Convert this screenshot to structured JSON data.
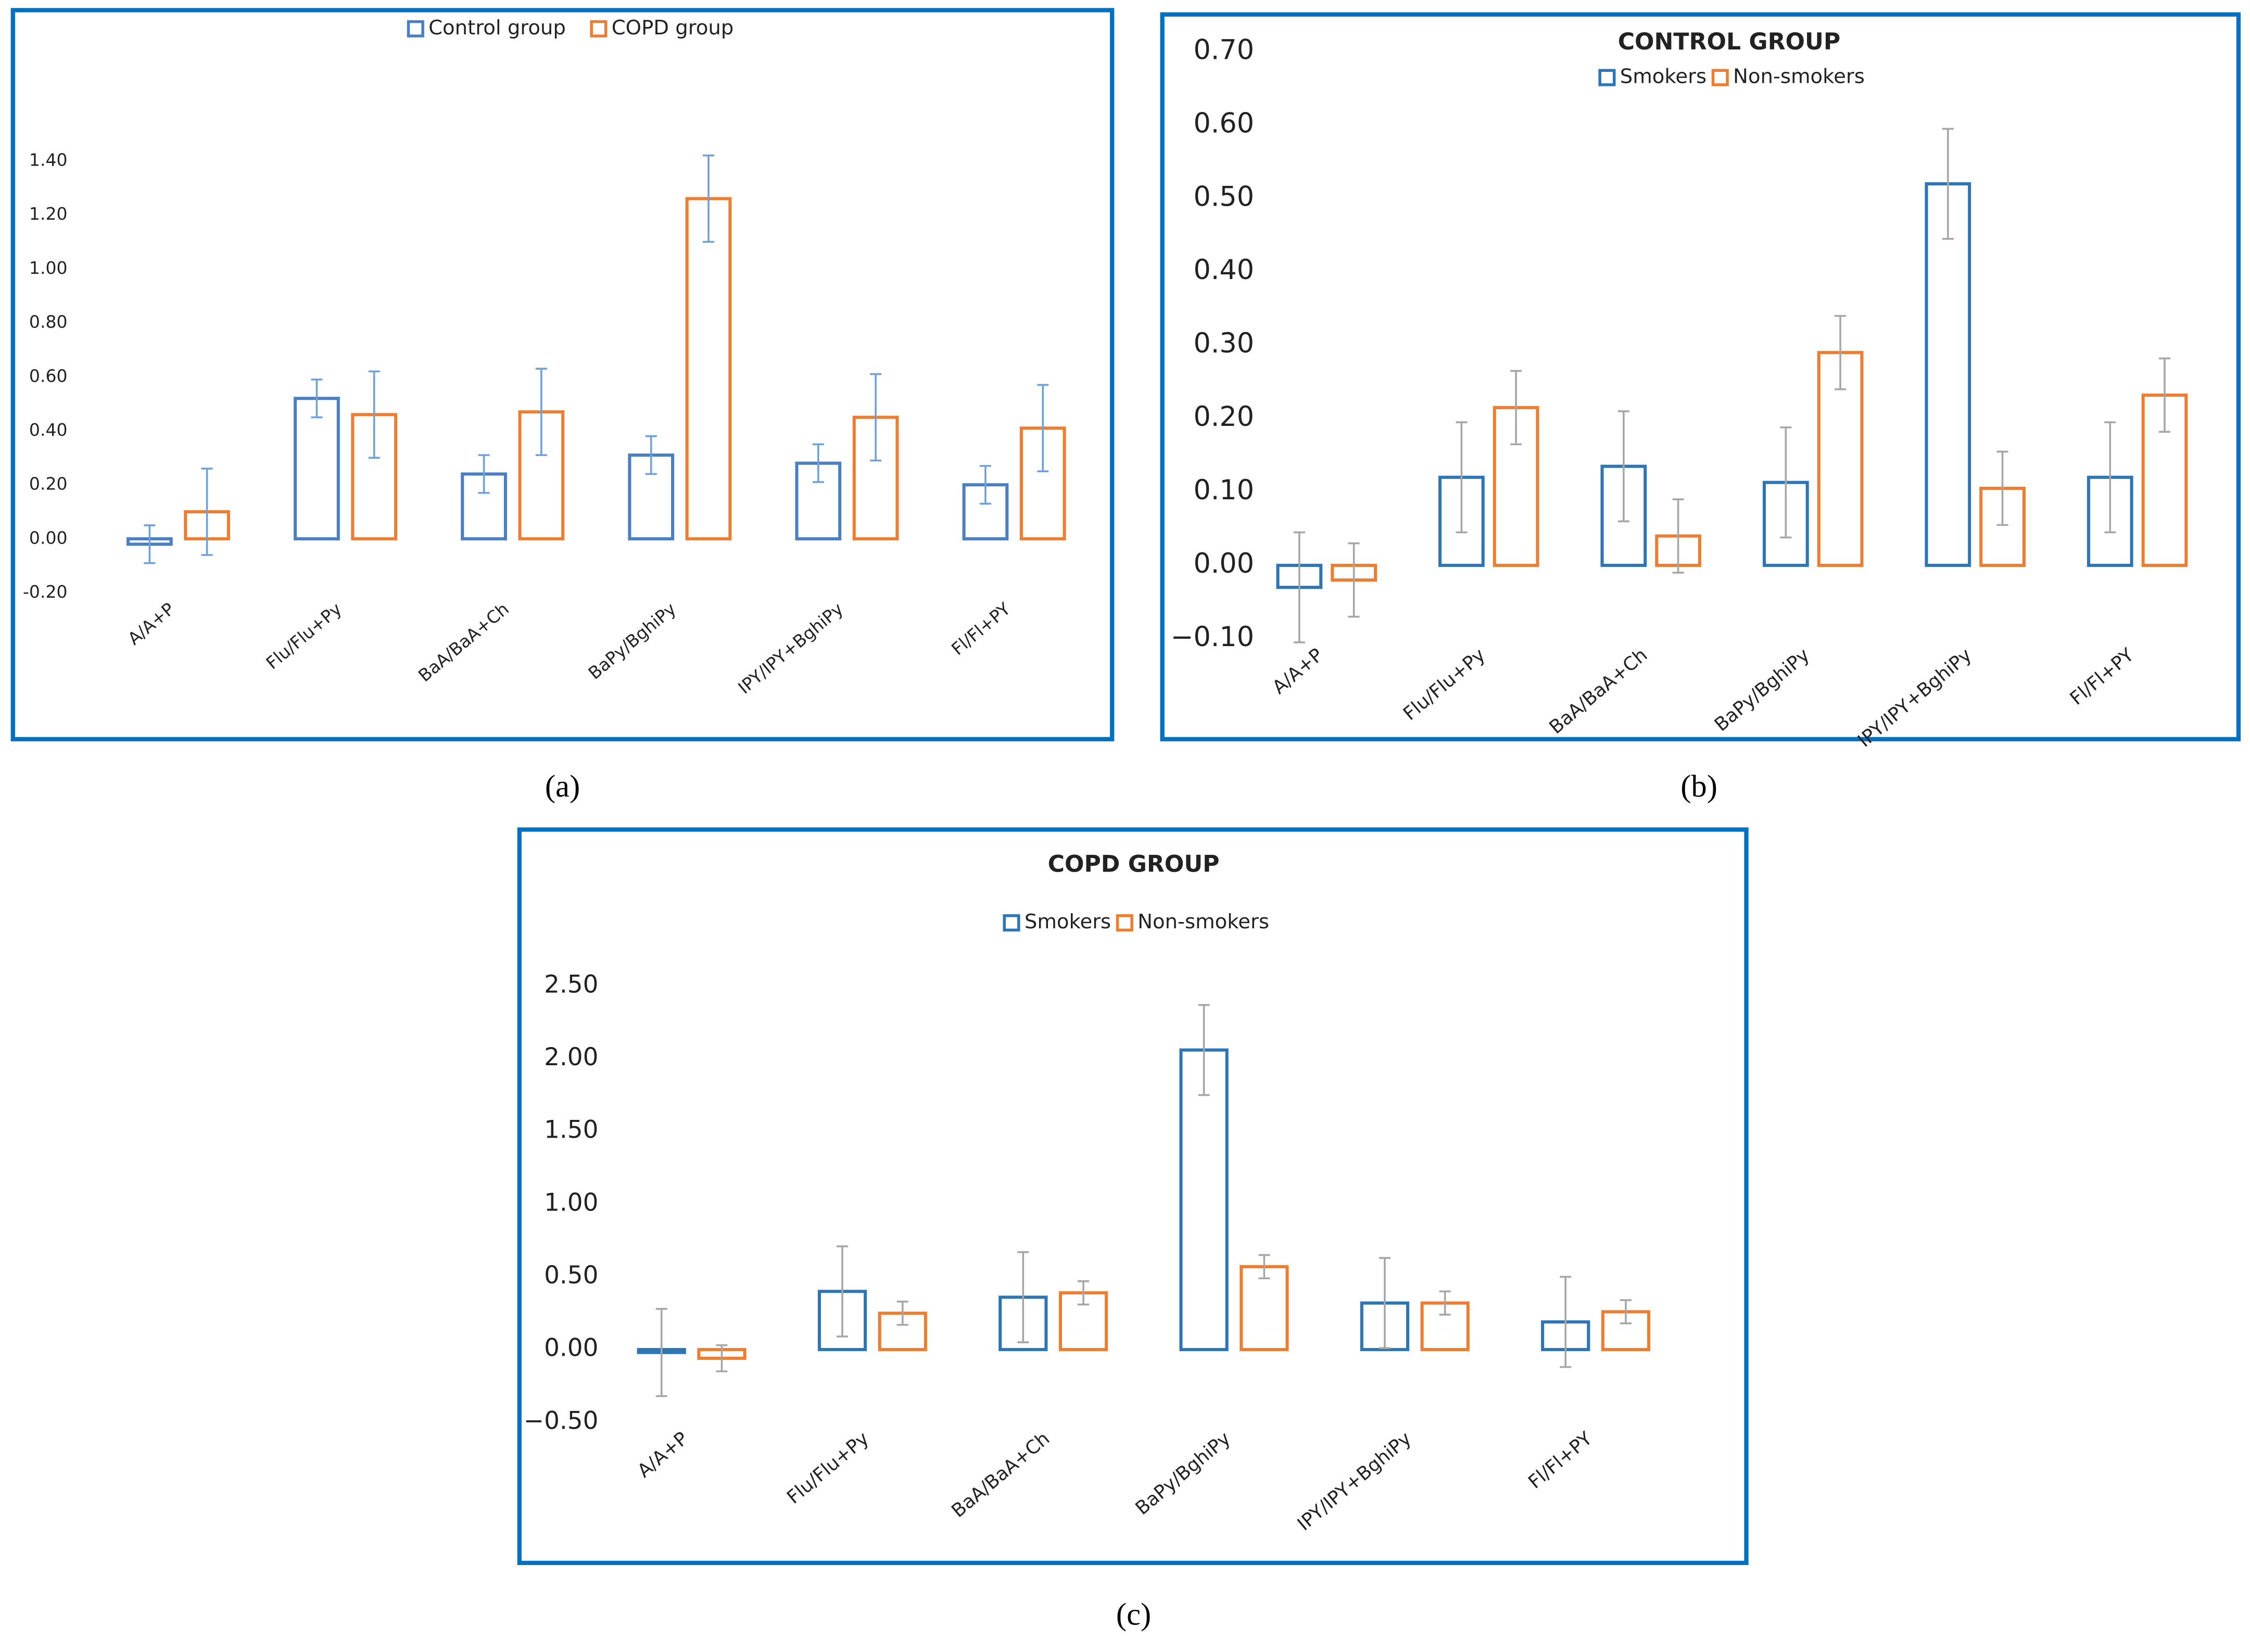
{
  "chart_data": [
    {
      "type": "bar",
      "caption": "(a)",
      "categories": [
        "A/A+P",
        "Flu/Flu+Py",
        "BaA/BaA+Ch",
        "BaPy/BghiPy",
        "IPY/IPY+BghiPy",
        "Fl/Fl+PY"
      ],
      "series": [
        {
          "name": "Control group",
          "color": "#4a7fc1",
          "values": [
            -0.02,
            0.52,
            0.24,
            0.31,
            0.28,
            0.2
          ],
          "errors": [
            0.07,
            0.07,
            0.07,
            0.07,
            0.07,
            0.07
          ]
        },
        {
          "name": "COPD group",
          "color": "#ed7d31",
          "values": [
            0.1,
            0.46,
            0.47,
            1.26,
            0.45,
            0.41
          ],
          "errors": [
            0.16,
            0.16,
            0.16,
            0.16,
            0.16,
            0.16
          ]
        }
      ],
      "error_color": "#6fa0d8",
      "ylim": [
        -0.2,
        1.4
      ],
      "yticks": [
        {
          "value": -0.2,
          "label": "-0.20"
        },
        {
          "value": 0,
          "label": "0.00"
        },
        {
          "value": 0.2,
          "label": "0.20"
        },
        {
          "value": 0.4,
          "label": "0.40"
        },
        {
          "value": 0.6,
          "label": "0.60"
        },
        {
          "value": 0.8,
          "label": "0.80"
        },
        {
          "value": 1.0,
          "label": "1.00"
        },
        {
          "value": 1.2,
          "label": "1.20"
        },
        {
          "value": 1.4,
          "label": "1.40"
        }
      ]
    },
    {
      "type": "bar",
      "caption": "(b)",
      "title": "CONTROL GROUP",
      "categories": [
        "A/A+P",
        "Flu/Flu+Py",
        "BaA/BaA+Ch",
        "BaPy/BghiPy",
        "IPY/IPY+BghiPy",
        "Fl/Fl+PY"
      ],
      "series": [
        {
          "name": "Smokers",
          "color": "#2e75b6",
          "values": [
            -0.03,
            0.12,
            0.135,
            0.113,
            0.52,
            0.12
          ],
          "errors": [
            0.075,
            0.075,
            0.075,
            0.075,
            0.075,
            0.075
          ]
        },
        {
          "name": "Non-smokers",
          "color": "#ed7d31",
          "values": [
            -0.02,
            0.215,
            0.04,
            0.29,
            0.105,
            0.232
          ],
          "errors": [
            0.05,
            0.05,
            0.05,
            0.05,
            0.05,
            0.05
          ]
        }
      ],
      "error_color": "#a6a6a6",
      "ylim": [
        -0.1,
        0.7
      ],
      "yticks": [
        {
          "value": -0.1,
          "label": "−0.10"
        },
        {
          "value": 0,
          "label": "0.00"
        },
        {
          "value": 0.1,
          "label": "0.10"
        },
        {
          "value": 0.2,
          "label": "0.20"
        },
        {
          "value": 0.3,
          "label": "0.30"
        },
        {
          "value": 0.4,
          "label": "0.40"
        },
        {
          "value": 0.5,
          "label": "0.50"
        },
        {
          "value": 0.6,
          "label": "0.60"
        },
        {
          "value": 0.7,
          "label": "0.70"
        }
      ]
    },
    {
      "type": "bar",
      "caption": "(c)",
      "title": "COPD GROUP",
      "categories": [
        "A/A+P",
        "Flu/Flu+Py",
        "BaA/BaA+Ch",
        "BaPy/BghiPy",
        "IPY/IPY+BghiPy",
        "Fl/Fl+PY"
      ],
      "series": [
        {
          "name": "Smokers",
          "color": "#2e75b6",
          "values": [
            -0.02,
            0.4,
            0.36,
            2.06,
            0.32,
            0.19
          ],
          "errors": [
            0.3,
            0.31,
            0.31,
            0.31,
            0.31,
            0.31
          ]
        },
        {
          "name": "Non-smokers",
          "color": "#ed7d31",
          "values": [
            -0.06,
            0.25,
            0.39,
            0.57,
            0.32,
            0.26
          ],
          "errors": [
            0.09,
            0.08,
            0.08,
            0.08,
            0.08,
            0.08
          ]
        }
      ],
      "error_color": "#a6a6a6",
      "ylim": [
        -0.5,
        2.5
      ],
      "yticks": [
        {
          "value": -0.5,
          "label": "−0.50"
        },
        {
          "value": 0,
          "label": "0.00"
        },
        {
          "value": 0.5,
          "label": "0.50"
        },
        {
          "value": 1.0,
          "label": "1.00"
        },
        {
          "value": 1.5,
          "label": "1.50"
        },
        {
          "value": 2.0,
          "label": "2.00"
        },
        {
          "value": 2.5,
          "label": "2.50"
        }
      ]
    }
  ]
}
